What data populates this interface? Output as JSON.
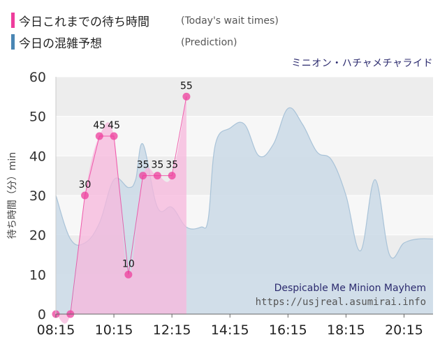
{
  "legend": {
    "today_label": "今日これまでの待ち時間",
    "today_note": "(Today's wait times)",
    "prediction_label": "今日の混雑予想",
    "prediction_note": "(Prediction)"
  },
  "attraction_jp": "ミニオン・ハチャメチャライド",
  "watermark": {
    "attraction_en": "Despicable Me Minion Mayhem",
    "url": "https://usjreal.asumirai.info"
  },
  "colors": {
    "today": "#ee3d9c",
    "today_fill": "#f7b7dc",
    "prediction": "#4a86b4",
    "prediction_fill": "#cad9e6",
    "prediction_line": "#a9c3d8"
  },
  "chart_data": {
    "type": "area",
    "ylabel": "待ち時間（分）min",
    "ylim": [
      0,
      60
    ],
    "yticks": [
      0,
      10,
      20,
      30,
      40,
      50,
      60
    ],
    "xlim": [
      "08:15",
      "21:15"
    ],
    "xticks": [
      "08:15",
      "10:15",
      "12:15",
      "14:15",
      "16:15",
      "18:15",
      "20:15"
    ],
    "series": [
      {
        "name": "今日の混雑予想",
        "x": [
          "08:15",
          "08:45",
          "09:15",
          "09:45",
          "10:15",
          "10:45",
          "11:00",
          "11:15",
          "11:45",
          "12:15",
          "12:45",
          "13:15",
          "13:30",
          "13:45",
          "14:15",
          "14:45",
          "15:15",
          "15:45",
          "16:15",
          "16:45",
          "17:15",
          "17:45",
          "18:15",
          "18:45",
          "19:15",
          "19:45",
          "20:15",
          "20:45",
          "21:15"
        ],
        "values": [
          30,
          19,
          18,
          23,
          34,
          32,
          34,
          43,
          27,
          27,
          22,
          22,
          24,
          43,
          47,
          48,
          40,
          43,
          52,
          48,
          41,
          39,
          30,
          16,
          34,
          15,
          18,
          19,
          19
        ]
      },
      {
        "name": "今日これまでの待ち時間",
        "x": [
          "08:15",
          "08:45",
          "09:15",
          "09:45",
          "10:15",
          "10:45",
          "11:15",
          "11:45",
          "12:15",
          "12:45"
        ],
        "values": [
          0,
          0,
          30,
          45,
          45,
          10,
          35,
          35,
          35,
          55
        ]
      }
    ],
    "data_labels": [
      {
        "x": "09:15",
        "value": "30"
      },
      {
        "x": "09:45",
        "value": "45"
      },
      {
        "x": "10:15",
        "value": "45"
      },
      {
        "x": "10:45",
        "value": "10"
      },
      {
        "x": "11:15",
        "value": "35"
      },
      {
        "x": "11:45",
        "value": "35"
      },
      {
        "x": "12:15",
        "value": "35"
      },
      {
        "x": "12:45",
        "value": "55"
      }
    ]
  }
}
